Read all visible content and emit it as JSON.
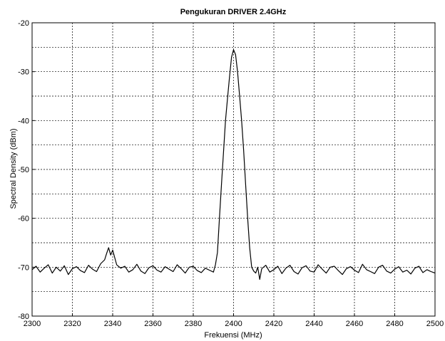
{
  "chart_data": {
    "type": "line",
    "title": "Pengukuran DRIVER 2.4GHz",
    "xlabel": "Frekuensi (MHz)",
    "ylabel": "Spectral Density (dBm)",
    "xlim": [
      2300,
      2500
    ],
    "ylim": [
      -80,
      -20
    ],
    "xticks": [
      2300,
      2320,
      2340,
      2360,
      2380,
      2400,
      2420,
      2440,
      2460,
      2480,
      2500
    ],
    "yticks": [
      -80,
      -70,
      -60,
      -50,
      -40,
      -30,
      -20
    ],
    "grid": true,
    "grid_minor_y": true,
    "series_color": "#000000",
    "series": [
      {
        "x": [
          2300,
          2302,
          2304,
          2306,
          2308,
          2310,
          2312,
          2314,
          2316,
          2318,
          2320,
          2322,
          2324,
          2326,
          2328,
          2330,
          2332,
          2334,
          2336,
          2337,
          2338,
          2339,
          2340,
          2341,
          2342,
          2344,
          2346,
          2348,
          2350,
          2352,
          2354,
          2356,
          2358,
          2360,
          2362,
          2364,
          2366,
          2368,
          2370,
          2372,
          2374,
          2376,
          2378,
          2380,
          2382,
          2384,
          2386,
          2388,
          2390,
          2391,
          2392,
          2393,
          2394,
          2395,
          2396,
          2397,
          2398,
          2399,
          2400,
          2401,
          2402,
          2403,
          2404,
          2405,
          2406,
          2407,
          2408,
          2409,
          2410,
          2411,
          2412,
          2413,
          2414,
          2416,
          2418,
          2420,
          2422,
          2424,
          2426,
          2428,
          2430,
          2432,
          2434,
          2436,
          2438,
          2440,
          2442,
          2444,
          2446,
          2448,
          2450,
          2452,
          2454,
          2456,
          2458,
          2460,
          2462,
          2464,
          2466,
          2468,
          2470,
          2472,
          2474,
          2476,
          2478,
          2480,
          2482,
          2484,
          2486,
          2488,
          2490,
          2492,
          2494,
          2496,
          2498,
          2500
        ],
        "y": [
          -70.5,
          -69.8,
          -71.0,
          -70.2,
          -69.5,
          -71.2,
          -70.0,
          -70.8,
          -69.7,
          -71.5,
          -70.3,
          -69.9,
          -70.7,
          -71.1,
          -69.6,
          -70.4,
          -70.9,
          -69.3,
          -68.5,
          -67.2,
          -66.0,
          -67.5,
          -66.5,
          -68.0,
          -69.5,
          -70.2,
          -69.8,
          -71.0,
          -70.5,
          -69.4,
          -70.8,
          -71.3,
          -70.1,
          -69.7,
          -70.6,
          -71.0,
          -69.9,
          -70.4,
          -70.9,
          -69.5,
          -70.3,
          -71.2,
          -70.0,
          -69.8,
          -70.7,
          -71.1,
          -70.2,
          -70.6,
          -71.0,
          -69.5,
          -67.0,
          -60.0,
          -53.0,
          -46.5,
          -40.0,
          -35.5,
          -31.0,
          -27.0,
          -25.5,
          -26.5,
          -30.0,
          -35.0,
          -40.0,
          -46.0,
          -53.0,
          -60.0,
          -66.0,
          -70.0,
          -70.8,
          -71.2,
          -70.0,
          -72.5,
          -70.3,
          -69.6,
          -71.0,
          -70.5,
          -69.8,
          -71.3,
          -70.2,
          -69.6,
          -70.9,
          -71.4,
          -70.1,
          -69.7,
          -70.8,
          -71.0,
          -69.5,
          -70.4,
          -71.2,
          -70.0,
          -69.8,
          -70.7,
          -71.5,
          -70.3,
          -69.9,
          -70.6,
          -71.1,
          -69.4,
          -70.5,
          -70.9,
          -71.3,
          -70.0,
          -69.6,
          -70.8,
          -71.2,
          -70.4,
          -69.9,
          -71.0,
          -70.6,
          -71.4,
          -70.2,
          -69.8,
          -71.1,
          -70.5,
          -70.9,
          -71.2
        ]
      }
    ]
  }
}
